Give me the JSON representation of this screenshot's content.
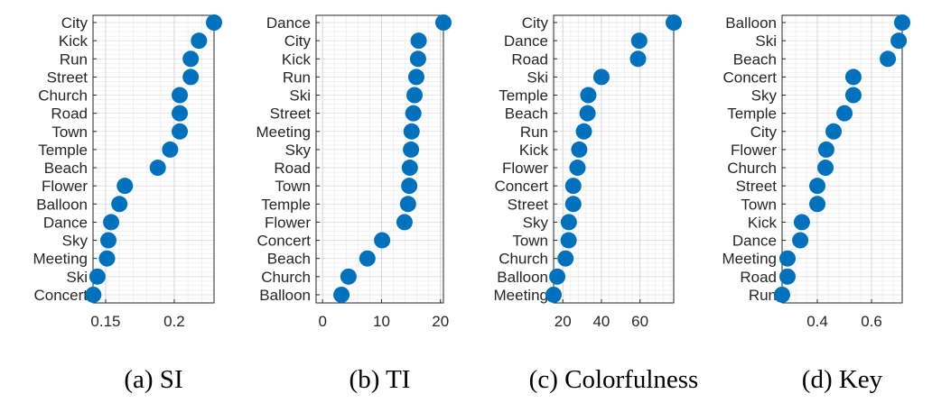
{
  "chart_data": [
    {
      "type": "scatter",
      "caption": "(a) SI",
      "categories": [
        "City",
        "Kick",
        "Run",
        "Street",
        "Church",
        "Road",
        "Town",
        "Temple",
        "Beach",
        "Flower",
        "Balloon",
        "Dance",
        "Sky",
        "Meeting",
        "Ski",
        "Concert"
      ],
      "values": [
        0.229,
        0.218,
        0.212,
        0.212,
        0.204,
        0.204,
        0.204,
        0.197,
        0.188,
        0.164,
        0.16,
        0.154,
        0.152,
        0.151,
        0.144,
        0.141
      ],
      "xlim": [
        0.1408,
        0.229
      ],
      "xticks": [
        0.15,
        0.2
      ],
      "xtick_labels": [
        "0.15",
        "0.2"
      ],
      "grid": true,
      "color": "#0072BD"
    },
    {
      "type": "scatter",
      "caption": "(b) TI",
      "categories": [
        "Dance",
        "City",
        "Kick",
        "Run",
        "Ski",
        "Street",
        "Meeting",
        "Sky",
        "Road",
        "Town",
        "Temple",
        "Flower",
        "Concert",
        "Beach",
        "Church",
        "Balloon"
      ],
      "values": [
        20.5,
        16.3,
        16.2,
        15.9,
        15.6,
        15.4,
        15.1,
        15.0,
        14.8,
        14.7,
        14.5,
        13.9,
        10.1,
        7.6,
        4.4,
        3.2
      ],
      "xlim": [
        -1.1,
        20.5
      ],
      "xticks": [
        0,
        10,
        20
      ],
      "xtick_labels": [
        "0",
        "10",
        "20"
      ],
      "grid": true,
      "color": "#0072BD"
    },
    {
      "type": "scatter",
      "caption": "(c) Colorfulness",
      "categories": [
        "City",
        "Dance",
        "Road",
        "Ski",
        "Temple",
        "Beach",
        "Run",
        "Kick",
        "Flower",
        "Concert",
        "Street",
        "Sky",
        "Town",
        "Church",
        "Balloon",
        "Meeting"
      ],
      "values": [
        77.5,
        59.6,
        59.0,
        40.0,
        33.2,
        32.8,
        30.9,
        28.5,
        27.6,
        25.4,
        25.4,
        23.1,
        23.0,
        21.4,
        17.1,
        15.2
      ],
      "xlim": [
        15.2,
        77.5
      ],
      "xticks": [
        20,
        40,
        60
      ],
      "xtick_labels": [
        "20",
        "40",
        "60"
      ],
      "grid": true,
      "color": "#0072BD"
    },
    {
      "type": "scatter",
      "caption": "(d) Key",
      "categories": [
        "Balloon",
        "Ski",
        "Beach",
        "Concert",
        "Sky",
        "Temple",
        "City",
        "Flower",
        "Church",
        "Street",
        "Town",
        "Kick",
        "Dance",
        "Meeting",
        "Road",
        "Run"
      ],
      "values": [
        0.713,
        0.7,
        0.66,
        0.533,
        0.533,
        0.5,
        0.46,
        0.433,
        0.43,
        0.4,
        0.4,
        0.343,
        0.337,
        0.29,
        0.29,
        0.27
      ],
      "xlim": [
        0.27,
        0.713
      ],
      "xticks": [
        0.4,
        0.6
      ],
      "xtick_labels": [
        "0.4",
        "0.6"
      ],
      "grid": true,
      "color": "#0072BD"
    }
  ]
}
